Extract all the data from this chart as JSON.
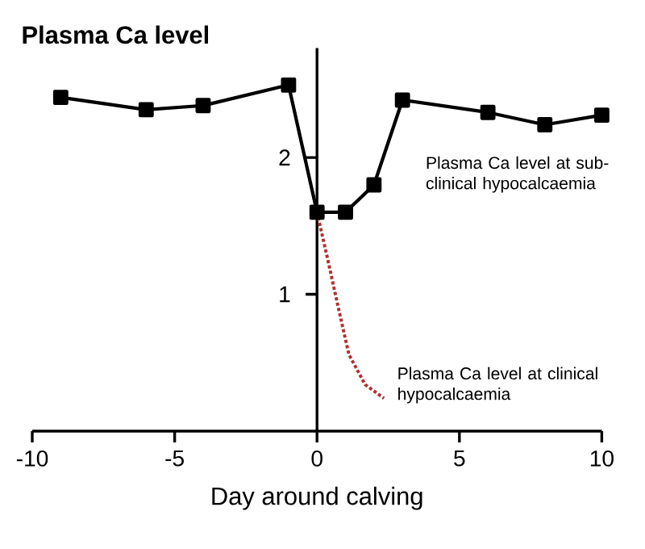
{
  "chart_data": {
    "type": "line",
    "title": "Plasma Ca level",
    "xlabel": "Day around calving",
    "xlim": [
      -10,
      10
    ],
    "ylim": [
      0,
      2.8
    ],
    "xticks": [
      -10,
      -5,
      0,
      5,
      10
    ],
    "yticks": [
      1,
      2
    ],
    "series": [
      {
        "color": "#000000",
        "marker": "square",
        "line_style": "solid",
        "x": [
          -9,
          -6,
          -4,
          -1,
          0,
          1,
          2,
          3,
          6,
          8,
          10
        ],
        "values": [
          2.44,
          2.35,
          2.38,
          2.53,
          1.6,
          1.6,
          1.8,
          2.42,
          2.33,
          2.24,
          2.31
        ]
      },
      {
        "color": "#b03030",
        "marker": "none",
        "line_style": "dotted",
        "x": [
          0,
          0.36,
          0.74,
          1.12,
          1.69,
          2.35
        ],
        "values": [
          1.6,
          1.27,
          0.91,
          0.56,
          0.34,
          0.24
        ]
      }
    ],
    "annotations": [
      "Plasma Ca level at sub-clinical hypocalcaemia",
      "Plasma Ca level at clinical hypocalcaemia"
    ]
  }
}
